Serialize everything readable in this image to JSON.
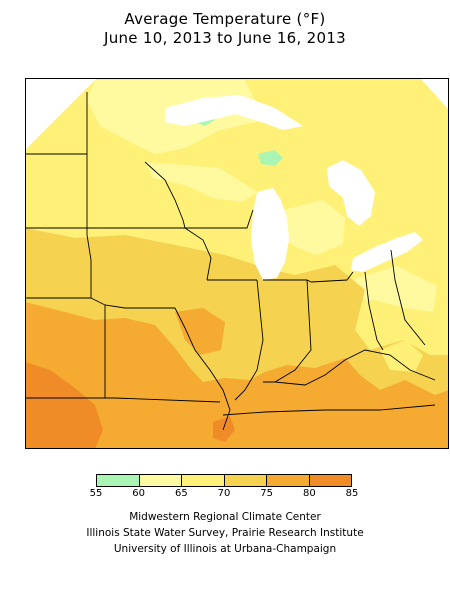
{
  "title": {
    "line1": "Average Temperature (°F)",
    "line2": "June 10, 2013 to June 16, 2013"
  },
  "legend": {
    "ticks": [
      "55",
      "60",
      "65",
      "70",
      "75",
      "80",
      "85"
    ],
    "colors": [
      "#aaf5b4",
      "#fffaa0",
      "#fff078",
      "#f5d250",
      "#f5aa32",
      "#f08c28"
    ]
  },
  "map_colors": {
    "bin_55_60": "#aaf5b4",
    "bin_60_65": "#fffaa0",
    "bin_65_70": "#fff078",
    "bin_70_75": "#f5d250",
    "bin_75_80": "#f5aa32",
    "bin_80_85": "#f08c28",
    "lake": "#ffffff",
    "boundary": "#000000"
  },
  "credits": [
    "Midwestern Regional Climate Center",
    "Illinois State Water Survey, Prairie Research Institute",
    "University of Illinois at Urbana-Champaign"
  ]
}
